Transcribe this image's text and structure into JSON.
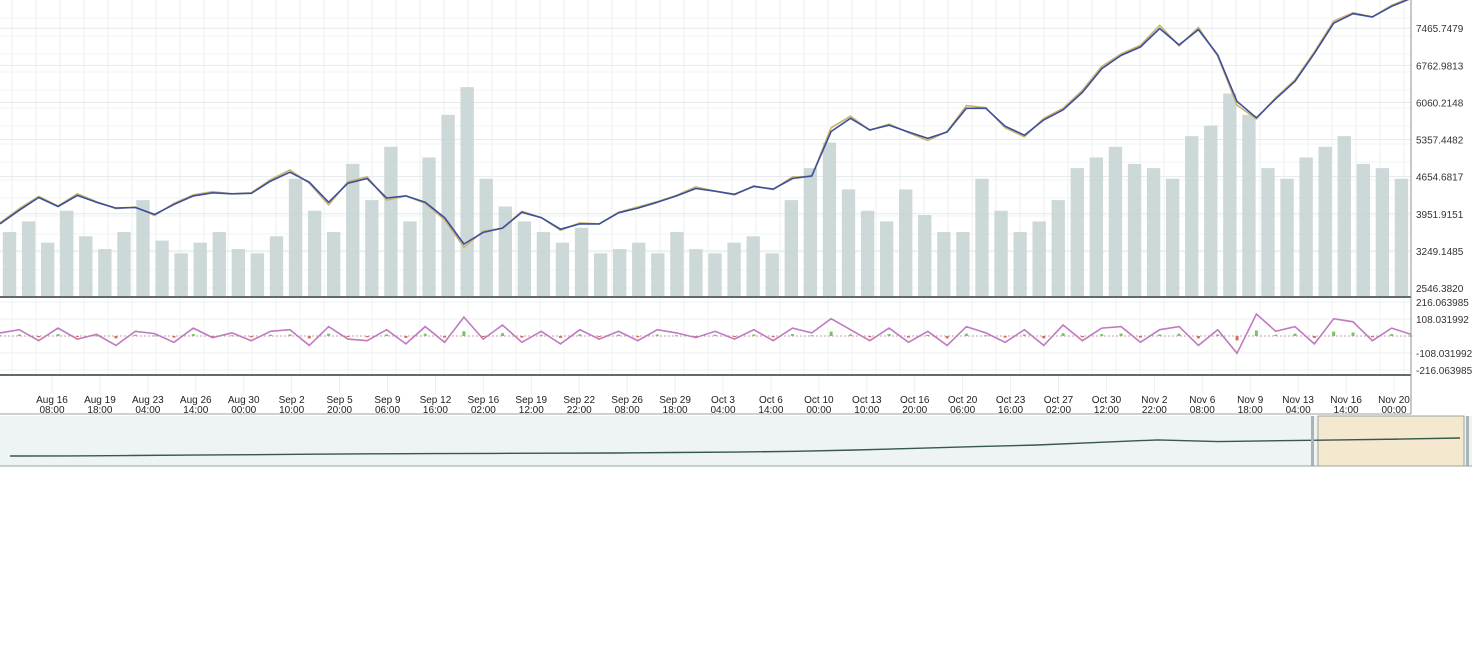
{
  "chart_data": {
    "type": "line",
    "panels": [
      "price",
      "oscillator",
      "navigator"
    ],
    "x_ticks": [
      {
        "l1": "Aug 16",
        "l2": "08:00"
      },
      {
        "l1": "Aug 19",
        "l2": "18:00"
      },
      {
        "l1": "Aug 23",
        "l2": "04:00"
      },
      {
        "l1": "Aug 26",
        "l2": "14:00"
      },
      {
        "l1": "Aug 30",
        "l2": "00:00"
      },
      {
        "l1": "Sep 2",
        "l2": "10:00"
      },
      {
        "l1": "Sep 5",
        "l2": "20:00"
      },
      {
        "l1": "Sep 9",
        "l2": "06:00"
      },
      {
        "l1": "Sep 12",
        "l2": "16:00"
      },
      {
        "l1": "Sep 16",
        "l2": "02:00"
      },
      {
        "l1": "Sep 19",
        "l2": "12:00"
      },
      {
        "l1": "Sep 22",
        "l2": "22:00"
      },
      {
        "l1": "Sep 26",
        "l2": "08:00"
      },
      {
        "l1": "Sep 29",
        "l2": "18:00"
      },
      {
        "l1": "Oct 3",
        "l2": "04:00"
      },
      {
        "l1": "Oct 6",
        "l2": "14:00"
      },
      {
        "l1": "Oct 10",
        "l2": "00:00"
      },
      {
        "l1": "Oct 13",
        "l2": "10:00"
      },
      {
        "l1": "Oct 16",
        "l2": "20:00"
      },
      {
        "l1": "Oct 20",
        "l2": "06:00"
      },
      {
        "l1": "Oct 23",
        "l2": "16:00"
      },
      {
        "l1": "Oct 27",
        "l2": "02:00"
      },
      {
        "l1": "Oct 30",
        "l2": "12:00"
      },
      {
        "l1": "Nov 2",
        "l2": "22:00"
      },
      {
        "l1": "Nov 6",
        "l2": "08:00"
      },
      {
        "l1": "Nov 9",
        "l2": "18:00"
      },
      {
        "l1": "Nov 13",
        "l2": "04:00"
      },
      {
        "l1": "Nov 16",
        "l2": "14:00"
      },
      {
        "l1": "Nov 20",
        "l2": "00:00"
      }
    ],
    "price_axis": {
      "tick_labels": [
        "7465.7479",
        "6762.9813",
        "6060.2148",
        "5357.4482",
        "4654.6817",
        "3951.9151",
        "3249.1485",
        "2546.3820"
      ],
      "tick_values": [
        7465.7479,
        6762.9813,
        6060.2148,
        5357.4482,
        4654.6817,
        3951.9151,
        3249.1485,
        2546.382
      ],
      "ylim": [
        2546.382,
        8000
      ]
    },
    "oscillator_axis": {
      "tick_labels": [
        "216.063985",
        "108.031992",
        "-108.031992",
        "-216.063985"
      ],
      "tick_values": [
        216.063985,
        108.031992,
        -108.031992,
        -216.063985
      ],
      "ylim": [
        -216.063985,
        216.063985
      ]
    },
    "series": [
      {
        "kind": "price",
        "color": "#c9b36a",
        "values": [
          3780,
          4050,
          4280,
          4100,
          4330,
          4180,
          4050,
          4080,
          3920,
          4150,
          4310,
          4370,
          4330,
          4350,
          4600,
          4780,
          4530,
          4120,
          4560,
          4650,
          4210,
          4290,
          4150,
          3840,
          3320,
          3620,
          3680,
          4000,
          3880,
          3640,
          3780,
          3760,
          3980,
          4080,
          4180,
          4300,
          4460,
          4380,
          4310,
          4480,
          4410,
          4650,
          4660,
          5580,
          5800,
          5530,
          5650,
          5490,
          5340,
          5510,
          6000,
          5960,
          5580,
          5410,
          5760,
          5950,
          6290,
          6740,
          6980,
          7140,
          7520,
          7130,
          7480,
          6940,
          6010,
          5750,
          6150,
          6490,
          7020,
          7600,
          7760,
          7680,
          7900,
          8050
        ]
      },
      {
        "kind": "moving-average",
        "color": "#3b4f9c",
        "values": [
          3760,
          4020,
          4260,
          4090,
          4300,
          4170,
          4060,
          4070,
          3940,
          4130,
          4290,
          4350,
          4330,
          4340,
          4570,
          4740,
          4550,
          4170,
          4530,
          4620,
          4250,
          4290,
          4170,
          3880,
          3380,
          3600,
          3680,
          3980,
          3880,
          3660,
          3760,
          3760,
          3970,
          4060,
          4170,
          4290,
          4430,
          4380,
          4320,
          4470,
          4420,
          4620,
          4670,
          5510,
          5760,
          5540,
          5630,
          5500,
          5380,
          5500,
          5950,
          5950,
          5610,
          5440,
          5730,
          5920,
          6250,
          6700,
          6950,
          7110,
          7460,
          7150,
          7440,
          6960,
          6080,
          5770,
          6130,
          6460,
          6990,
          7560,
          7740,
          7680,
          7880,
          8030
        ]
      },
      {
        "kind": "volume",
        "color": "#c8d4d4",
        "values": [
          0.3,
          0.35,
          0.25,
          0.4,
          0.28,
          0.22,
          0.3,
          0.45,
          0.26,
          0.2,
          0.25,
          0.3,
          0.22,
          0.2,
          0.28,
          0.55,
          0.4,
          0.3,
          0.62,
          0.45,
          0.7,
          0.35,
          0.65,
          0.85,
          0.98,
          0.55,
          0.42,
          0.35,
          0.3,
          0.25,
          0.32,
          0.2,
          0.22,
          0.25,
          0.2,
          0.3,
          0.22,
          0.2,
          0.25,
          0.28,
          0.2,
          0.45,
          0.6,
          0.72,
          0.5,
          0.4,
          0.35,
          0.5,
          0.38,
          0.3,
          0.3,
          0.55,
          0.4,
          0.3,
          0.35,
          0.45,
          0.6,
          0.65,
          0.7,
          0.62,
          0.6,
          0.55,
          0.75,
          0.8,
          0.95,
          0.85,
          0.6,
          0.55,
          0.65,
          0.7,
          0.75,
          0.62,
          0.6,
          0.55
        ]
      },
      {
        "kind": "oscillator-line",
        "color": "#c07ac0",
        "values": [
          20,
          40,
          -30,
          50,
          -20,
          10,
          -60,
          30,
          15,
          -40,
          50,
          -10,
          20,
          -30,
          30,
          40,
          -60,
          60,
          -20,
          -30,
          40,
          -50,
          60,
          -40,
          120,
          -20,
          70,
          -40,
          30,
          -50,
          40,
          -20,
          30,
          -30,
          40,
          20,
          -10,
          30,
          -20,
          40,
          -30,
          50,
          20,
          110,
          40,
          -30,
          50,
          -40,
          30,
          -60,
          60,
          20,
          -40,
          40,
          -60,
          70,
          -30,
          50,
          60,
          -40,
          40,
          60,
          -60,
          40,
          -110,
          140,
          30,
          60,
          -50,
          110,
          90,
          -30,
          50,
          10
        ]
      },
      {
        "kind": "oscillator-histogram",
        "color_positive": "#7dbf6a",
        "color_negative": "#d96b5b",
        "values": [
          5,
          10,
          -8,
          12,
          -5,
          3,
          -15,
          8,
          4,
          -10,
          12,
          -3,
          5,
          -8,
          8,
          10,
          -15,
          15,
          -5,
          -8,
          10,
          -12,
          15,
          -10,
          30,
          -5,
          18,
          -10,
          8,
          -12,
          10,
          -5,
          8,
          -8,
          10,
          5,
          -3,
          8,
          -5,
          10,
          -8,
          12,
          5,
          28,
          10,
          -8,
          12,
          -10,
          8,
          -15,
          15,
          5,
          -10,
          10,
          -15,
          18,
          -8,
          12,
          15,
          -10,
          10,
          15,
          -15,
          10,
          -28,
          35,
          8,
          15,
          -12,
          28,
          22,
          -8,
          12,
          3
        ]
      },
      {
        "kind": "navigator",
        "color": "#35584f",
        "values": [
          3780,
          3800,
          3900,
          4000,
          4100,
          4200,
          4300,
          4350,
          4400,
          4450,
          4500,
          4600,
          4700,
          4900,
          5200,
          5600,
          6000,
          6400,
          7000,
          7600,
          7200,
          7400,
          7600,
          7800,
          8050
        ]
      }
    ]
  }
}
